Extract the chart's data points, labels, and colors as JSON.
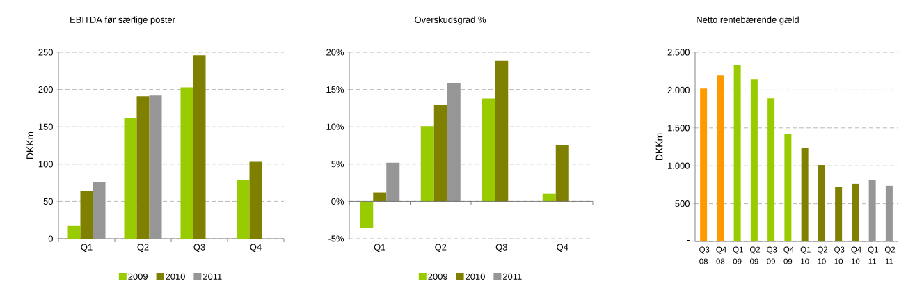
{
  "chart_data": [
    {
      "type": "bar",
      "title": "EBITDA før særlige poster",
      "ylabel": "DKKm",
      "categories": [
        "Q1",
        "Q2",
        "Q3",
        "Q4"
      ],
      "series": [
        {
          "name": "2009",
          "color": "#99cc00",
          "values": [
            17,
            162,
            203,
            79
          ]
        },
        {
          "name": "2010",
          "color": "#808000",
          "values": [
            64,
            191,
            246,
            103
          ]
        },
        {
          "name": "2011",
          "color": "#969696",
          "values": [
            76,
            192,
            null,
            null
          ]
        }
      ],
      "ylim": [
        0,
        250
      ],
      "yticks": [
        0,
        50,
        100,
        150,
        200,
        250
      ],
      "grid": "y",
      "legend": "bottom"
    },
    {
      "type": "bar",
      "title": "Overskudsgrad %",
      "categories": [
        "Q1",
        "Q2",
        "Q3",
        "Q4"
      ],
      "series": [
        {
          "name": "2009",
          "color": "#99cc00",
          "values": [
            -3.6,
            10.1,
            13.8,
            1.0
          ]
        },
        {
          "name": "2010",
          "color": "#808000",
          "values": [
            1.2,
            12.9,
            18.9,
            7.5
          ]
        },
        {
          "name": "2011",
          "color": "#969696",
          "values": [
            5.2,
            15.9,
            null,
            null
          ]
        }
      ],
      "ylim": [
        -5,
        20
      ],
      "yticks": [
        {
          "value": -5,
          "label": "-5%"
        },
        {
          "value": 0,
          "label": "0%"
        },
        {
          "value": 5,
          "label": "5%"
        },
        {
          "value": 10,
          "label": "10%"
        },
        {
          "value": 15,
          "label": "15%"
        },
        {
          "value": 20,
          "label": "20%"
        }
      ],
      "grid": "y",
      "legend": "bottom"
    },
    {
      "type": "bar",
      "title": "Netto rentebærende gæld",
      "ylabel": "DKKm",
      "categories": [
        "Q3 08",
        "Q4 08",
        "Q1 09",
        "Q2 09",
        "Q3 09",
        "Q4 09",
        "Q1 10",
        "Q2 10",
        "Q3 10",
        "Q4 10",
        "Q1 11",
        "Q2 11"
      ],
      "values": [
        2020,
        2194,
        2332,
        2139,
        1892,
        1415,
        1232,
        1012,
        718,
        764,
        819,
        737
      ],
      "colors": [
        "#ff9900",
        "#ff9900",
        "#99cc00",
        "#99cc00",
        "#99cc00",
        "#99cc00",
        "#808000",
        "#808000",
        "#808000",
        "#808000",
        "#969696",
        "#969696"
      ],
      "ylim": [
        0,
        2500
      ],
      "yticks": [
        {
          "value": 0,
          "label": "-"
        },
        {
          "value": 500,
          "label": "500"
        },
        {
          "value": 1000,
          "label": "1.000"
        },
        {
          "value": 1500,
          "label": "1.500"
        },
        {
          "value": 2000,
          "label": "2.000"
        },
        {
          "value": 2500,
          "label": "2.500"
        }
      ],
      "grid": "y"
    }
  ]
}
